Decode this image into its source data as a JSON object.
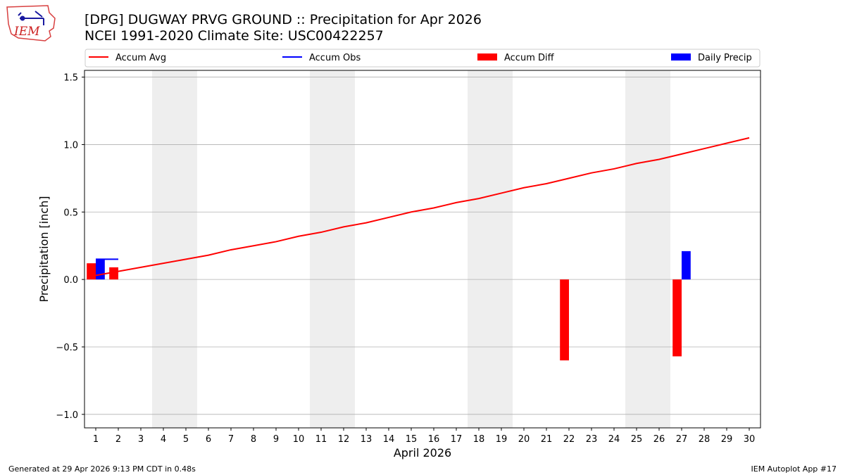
{
  "header": {
    "title_line1": "[DPG] DUGWAY PRVG GROUND :: Precipitation for Apr 2026",
    "title_line2": "NCEI 1991-2020 Climate Site: USC00422257",
    "logo_text": "IEM"
  },
  "footer": {
    "generated": "Generated at 29 Apr 2026 9:13 PM CDT in 0.48s",
    "app": "IEM Autoplot App #17"
  },
  "colors": {
    "accum_avg": "#ff0000",
    "accum_obs": "#0000ff",
    "accum_diff": "#ff0000",
    "daily_precip": "#0000ff",
    "weekend_shade": "#eeeeee",
    "grid": "#b0b0b0"
  },
  "chart_data": {
    "type": "bar",
    "xlabel": "April 2026",
    "ylabel": "Precipitation [inch]",
    "xlim": [
      0.5,
      30.5
    ],
    "ylim": [
      -1.1,
      1.55
    ],
    "yticks": [
      1.5,
      1.0,
      0.5,
      0.0,
      -0.5,
      -1.0
    ],
    "ytick_labels": [
      "1.5",
      "1.0",
      "0.5",
      "0.0",
      "−0.5",
      "−1.0"
    ],
    "days": [
      1,
      2,
      3,
      4,
      5,
      6,
      7,
      8,
      9,
      10,
      11,
      12,
      13,
      14,
      15,
      16,
      17,
      18,
      19,
      20,
      21,
      22,
      23,
      24,
      25,
      26,
      27,
      28,
      29,
      30
    ],
    "weekend_days": [
      4,
      5,
      11,
      12,
      18,
      19,
      25,
      26
    ],
    "grid": "horizontal",
    "legend": {
      "placement": "top",
      "entries": [
        {
          "key": "accum_avg",
          "label": "Accum Avg",
          "marker": "line"
        },
        {
          "key": "accum_obs",
          "label": "Accum Obs",
          "marker": "line"
        },
        {
          "key": "accum_diff",
          "label": "Accum Diff",
          "marker": "bar"
        },
        {
          "key": "daily_precip",
          "label": "Daily Precip",
          "marker": "bar"
        }
      ]
    },
    "series": [
      {
        "name": "Accum Avg",
        "type": "line",
        "x": [
          1,
          2,
          3,
          4,
          5,
          6,
          7,
          8,
          9,
          10,
          11,
          12,
          13,
          14,
          15,
          16,
          17,
          18,
          19,
          20,
          21,
          22,
          23,
          24,
          25,
          26,
          27,
          28,
          29,
          30
        ],
        "values": [
          0.03,
          0.06,
          0.09,
          0.12,
          0.15,
          0.18,
          0.22,
          0.25,
          0.28,
          0.32,
          0.35,
          0.39,
          0.42,
          0.46,
          0.5,
          0.53,
          0.57,
          0.6,
          0.64,
          0.68,
          0.71,
          0.75,
          0.79,
          0.82,
          0.86,
          0.89,
          0.93,
          0.97,
          1.01,
          1.05
        ]
      },
      {
        "name": "Accum Obs",
        "type": "step",
        "x": [
          1,
          2
        ],
        "values": [
          0.15,
          0.15
        ]
      },
      {
        "name": "Accum Diff",
        "type": "bar",
        "x": [
          1,
          2,
          22,
          27
        ],
        "values": [
          0.12,
          0.09,
          -0.6,
          -0.57
        ]
      },
      {
        "name": "Daily Precip",
        "type": "bar",
        "x": [
          1,
          27
        ],
        "values": [
          0.15,
          0.21
        ]
      }
    ]
  }
}
